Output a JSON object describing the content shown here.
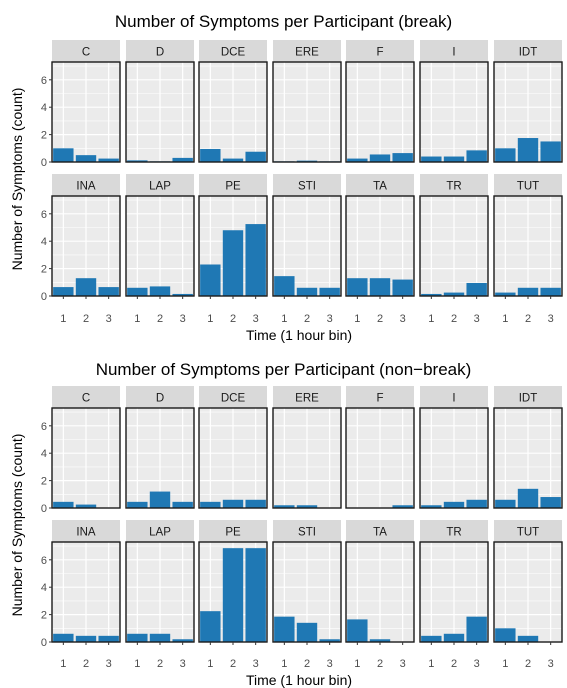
{
  "chart_data": [
    {
      "type": "bar",
      "title": "Number of Symptoms per Participant (break)",
      "xlabel": "Time (1 hour bin)",
      "ylabel": "Number of Symptoms (count)",
      "x": [
        "1",
        "2",
        "3"
      ],
      "y_ticks": [
        "0",
        "2",
        "4",
        "6"
      ],
      "ylim": [
        0,
        7.3
      ],
      "grid": true,
      "bar_color": "#1f78b4",
      "facets": [
        {
          "name": "C",
          "values": [
            1.0,
            0.5,
            0.25
          ]
        },
        {
          "name": "D",
          "values": [
            0.12,
            0.05,
            0.3
          ]
        },
        {
          "name": "DCE",
          "values": [
            0.95,
            0.25,
            0.75
          ]
        },
        {
          "name": "ERE",
          "values": [
            0.05,
            0.1,
            0.05
          ]
        },
        {
          "name": "F",
          "values": [
            0.25,
            0.55,
            0.65
          ]
        },
        {
          "name": "I",
          "values": [
            0.4,
            0.4,
            0.85
          ]
        },
        {
          "name": "IDT",
          "values": [
            1.0,
            1.75,
            1.5
          ]
        },
        {
          "name": "INA",
          "values": [
            0.65,
            1.3,
            0.65
          ]
        },
        {
          "name": "LAP",
          "values": [
            0.6,
            0.7,
            0.15
          ]
        },
        {
          "name": "PE",
          "values": [
            2.3,
            4.8,
            5.25
          ]
        },
        {
          "name": "STI",
          "values": [
            1.45,
            0.6,
            0.6
          ]
        },
        {
          "name": "TA",
          "values": [
            1.3,
            1.3,
            1.2
          ]
        },
        {
          "name": "TR",
          "values": [
            0.15,
            0.25,
            0.95
          ]
        },
        {
          "name": "TUT",
          "values": [
            0.25,
            0.6,
            0.6
          ]
        }
      ]
    },
    {
      "type": "bar",
      "title": "Number of Symptoms per Participant (non−break)",
      "xlabel": "Time (1 hour bin)",
      "ylabel": "Number of Symptoms (count)",
      "x": [
        "1",
        "2",
        "3"
      ],
      "y_ticks": [
        "0",
        "2",
        "4",
        "6"
      ],
      "ylim": [
        0,
        7.3
      ],
      "grid": true,
      "bar_color": "#1f78b4",
      "facets": [
        {
          "name": "C",
          "values": [
            0.45,
            0.25,
            0.0
          ]
        },
        {
          "name": "D",
          "values": [
            0.45,
            1.2,
            0.45
          ]
        },
        {
          "name": "DCE",
          "values": [
            0.45,
            0.6,
            0.6
          ]
        },
        {
          "name": "ERE",
          "values": [
            0.2,
            0.2,
            0.0
          ]
        },
        {
          "name": "F",
          "values": [
            0.0,
            0.0,
            0.2
          ]
        },
        {
          "name": "I",
          "values": [
            0.2,
            0.45,
            0.6
          ]
        },
        {
          "name": "IDT",
          "values": [
            0.6,
            1.4,
            0.8
          ]
        },
        {
          "name": "INA",
          "values": [
            0.6,
            0.45,
            0.45
          ]
        },
        {
          "name": "LAP",
          "values": [
            0.6,
            0.6,
            0.2
          ]
        },
        {
          "name": "PE",
          "values": [
            2.25,
            6.85,
            6.85
          ]
        },
        {
          "name": "STI",
          "values": [
            1.85,
            1.4,
            0.2
          ]
        },
        {
          "name": "TA",
          "values": [
            1.65,
            0.2,
            0.0
          ]
        },
        {
          "name": "TR",
          "values": [
            0.45,
            0.6,
            1.85
          ]
        },
        {
          "name": "TUT",
          "values": [
            1.0,
            0.45,
            0.0
          ]
        }
      ]
    }
  ]
}
